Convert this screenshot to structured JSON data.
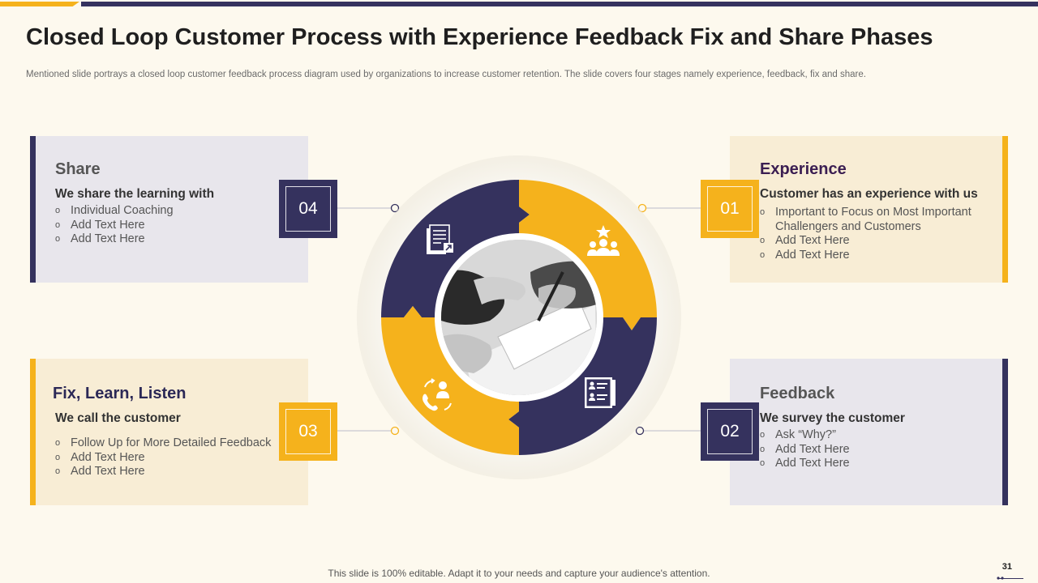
{
  "header": {
    "title": "Closed Loop Customer Process with Experience Feedback Fix and Share Phases",
    "subtitle": "Mentioned slide portrays a closed loop customer feedback process diagram used by organizations to increase customer retention. The slide covers four stages namely experience, feedback, fix and share."
  },
  "stages": {
    "share": {
      "number": "04",
      "title": "Share",
      "lead": "We share the learning with",
      "items": [
        "Individual  Coaching",
        "Add Text Here",
        "Add Text Here"
      ],
      "icon": "document-share-icon"
    },
    "fix": {
      "number": "03",
      "title": "Fix, Learn, Listen",
      "lead": "We call the customer",
      "items": [
        "Follow Up for More  Detailed Feedback",
        "Add Text Here",
        "Add Text Here"
      ],
      "icon": "customer-call-icon"
    },
    "experience": {
      "number": "01",
      "title": "Experience",
      "lead": "Customer has an experience with us",
      "items": [
        "Important to Focus on Most Important Challengers and Customers",
        "Add Text Here",
        "Add Text Here"
      ],
      "icon": "team-star-icon"
    },
    "feedback": {
      "number": "02",
      "title": "Feedback",
      "lead": "We survey the customer",
      "items": [
        "Ask “Why?”",
        "Add Text Here",
        "Add Text Here"
      ],
      "icon": "survey-form-icon"
    }
  },
  "center_image": "business-handshake-photo",
  "colors": {
    "navy": "#35325E",
    "yellow": "#F5B21C",
    "background": "#FDF9EE"
  },
  "footer": {
    "text": "This slide is 100% editable. Adapt it to your needs and capture your audience's attention.",
    "page_number": "31"
  }
}
